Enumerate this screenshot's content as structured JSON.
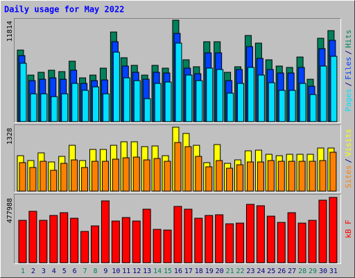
{
  "title": "Daily usage for May 2022",
  "legend_separator": "/",
  "chart_data": [
    {
      "type": "bar",
      "ylim": [
        0,
        11814
      ],
      "yticks": [
        11814
      ],
      "series": [
        {
          "name": "Hits",
          "color": "#00805C",
          "values": [
            8333,
            5420,
            5744,
            5987,
            5825,
            7038,
            5097,
            5420,
            6229,
            10436,
            7443,
            6553,
            5420,
            6553,
            6229,
            11814,
            7200,
            6391,
            9304,
            9304,
            5744,
            6391,
            10032,
            9142,
            7200,
            6472,
            6310,
            7524,
            4935,
            9708,
            10598
          ]
        },
        {
          "name": "Files",
          "color": "#0040FF",
          "values": [
            7686,
            4773,
            4935,
            5097,
            4935,
            5987,
            4450,
            4773,
            4854,
            9304,
            6472,
            5744,
            4935,
            5744,
            5663,
            10274,
            6229,
            5582,
            8009,
            8009,
            4773,
            6068,
            8737,
            7362,
            6068,
            5663,
            5663,
            6310,
            4126,
            8495,
            9465
          ]
        },
        {
          "name": "Pages",
          "color": "#00E0FF",
          "values": [
            6796,
            3236,
            3236,
            2912,
            3236,
            4450,
            3641,
            4045,
            3236,
            8090,
            5097,
            4773,
            2670,
            4450,
            4611,
            9142,
            5420,
            4773,
            6229,
            6068,
            3317,
            4450,
            6310,
            5420,
            4530,
            3641,
            3641,
            4450,
            3155,
            6472,
            7605
          ]
        }
      ]
    },
    {
      "type": "bar",
      "ylim": [
        0,
        1328
      ],
      "yticks": [
        1328
      ],
      "series": [
        {
          "name": "Visits",
          "color": "#FFFF00",
          "values": [
            736,
            635,
            794,
            606,
            722,
            952,
            635,
            866,
            866,
            952,
            1025,
            1025,
            924,
            938,
            736,
            1328,
            1198,
            952,
            592,
            967,
            577,
            649,
            837,
            851,
            765,
            736,
            765,
            765,
            765,
            895,
            895
          ]
        },
        {
          "name": "Sites",
          "color": "#FF8000",
          "values": [
            592,
            491,
            620,
            433,
            577,
            649,
            491,
            620,
            620,
            664,
            693,
            707,
            649,
            678,
            620,
            1010,
            924,
            722,
            505,
            635,
            476,
            548,
            606,
            606,
            635,
            620,
            620,
            620,
            620,
            635,
            808
          ]
        }
      ]
    },
    {
      "type": "bar",
      "ylim": [
        0,
        477988
      ],
      "yticks": [
        477988
      ],
      "categories": [
        "1",
        "2",
        "3",
        "4",
        "5",
        "6",
        "7",
        "8",
        "9",
        "10",
        "11",
        "12",
        "13",
        "14",
        "15",
        "16",
        "17",
        "18",
        "19",
        "20",
        "21",
        "22",
        "23",
        "24",
        "25",
        "26",
        "27",
        "28",
        "29",
        "30",
        "31"
      ],
      "category_colors": [
        "#00805C",
        "#000080",
        "#000080",
        "#000080",
        "#000080",
        "#000080",
        "#00805C",
        "#00805C",
        "#000080",
        "#000080",
        "#000080",
        "#000080",
        "#000080",
        "#00805C",
        "#00805C",
        "#000080",
        "#000080",
        "#000080",
        "#000080",
        "#000080",
        "#00805C",
        "#00805C",
        "#000080",
        "#000080",
        "#000080",
        "#000080",
        "#000080",
        "#00805C",
        "#00805C",
        "#000080",
        "#000080"
      ],
      "series": [
        {
          "name": "kB F",
          "color": "#FF0000",
          "values": [
            310185,
            376290,
            310185,
            345780,
            366120,
            325440,
            228825,
            269505,
            452565,
            305100,
            330525,
            305100,
            391545,
            244080,
            238995,
            411885,
            391545,
            325440,
            345780,
            350865,
            284760,
            289845,
            427140,
            416970,
            340695,
            294930,
            366120,
            289845,
            310185,
            457650,
            477988
          ]
        }
      ]
    }
  ]
}
